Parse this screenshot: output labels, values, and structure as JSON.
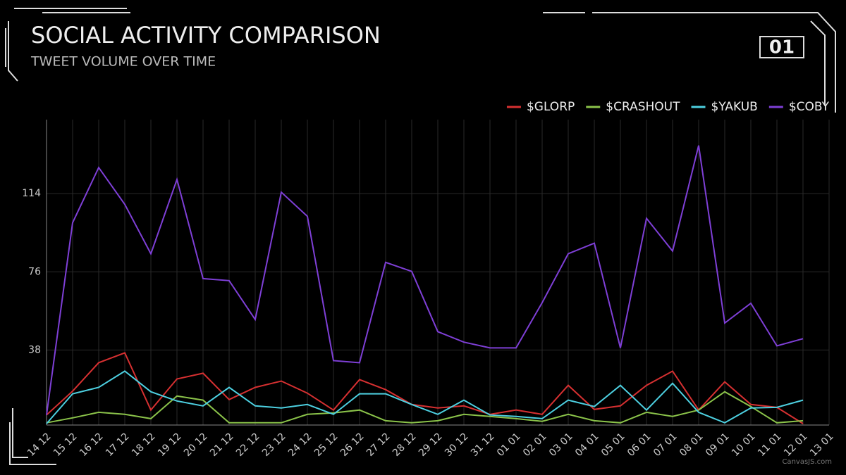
{
  "badge": "01",
  "watermark": "CanvasJS.com",
  "chart_data": {
    "type": "line",
    "title": "SOCIAL ACTIVITY COMPARISON",
    "subtitle": "TWEET VOLUME OVER TIME",
    "categories": [
      "14 12",
      "15 12",
      "16 12",
      "17 12",
      "18 12",
      "19 12",
      "20 12",
      "21 12",
      "22 12",
      "23 12",
      "24 12",
      "25 12",
      "26 12",
      "27 12",
      "28 12",
      "29 12",
      "30 12",
      "31 12",
      "01 01",
      "02 01",
      "03 01",
      "04 01",
      "05 01",
      "06 01",
      "07 01",
      "08 01",
      "09 01",
      "10 01",
      "11 01",
      "12 01",
      "13 01"
    ],
    "series": [
      {
        "name": "$GLORP",
        "color": "#d63031",
        "values": [
          6.4,
          18,
          31.8,
          36.6,
          8.8,
          23.9,
          26.7,
          13.9,
          19.8,
          22.9,
          17,
          8.8,
          23.6,
          18.7,
          11.5,
          9.8,
          10.8,
          6.7,
          8.8,
          6.7,
          20.8,
          9.1,
          10.8,
          20.8,
          27.7,
          8.8,
          22.5,
          11.5,
          10.1,
          2.2,
          null
        ]
      },
      {
        "name": "$CRASHOUT",
        "color": "#8bc34a",
        "values": [
          2.6,
          5,
          7.7,
          6.7,
          4.6,
          15.6,
          13.6,
          2.6,
          2.6,
          2.6,
          6.7,
          7.4,
          8.8,
          3.6,
          2.6,
          3.6,
          6.7,
          5.7,
          4.6,
          3.3,
          6.7,
          3.6,
          2.6,
          7.7,
          5.7,
          8.8,
          17.7,
          10.5,
          2.6,
          3.6,
          null
        ]
      },
      {
        "name": "$YAKUB",
        "color": "#4dd0e1",
        "values": [
          2.2,
          16.7,
          19.8,
          27.7,
          17.7,
          13.2,
          10.8,
          19.8,
          10.8,
          9.8,
          11.5,
          6.7,
          16.7,
          16.7,
          11.5,
          6.7,
          13.6,
          6.4,
          5.7,
          4.6,
          13.6,
          10.5,
          20.8,
          8.8,
          21.8,
          7.7,
          2.6,
          9.8,
          10.1,
          13.6,
          null
        ]
      },
      {
        "name": "$COBY",
        "color": "#7e3fd6",
        "values": [
          6.4,
          99.9,
          126.7,
          108.8,
          84.8,
          120.9,
          72.7,
          71.7,
          52.8,
          114.7,
          103,
          32.8,
          31.8,
          80.6,
          76.2,
          46.9,
          41.8,
          39,
          39,
          61,
          84.8,
          89.9,
          39,
          102,
          86.1,
          137.4,
          51.1,
          60.7,
          40,
          43.5,
          null
        ]
      }
    ],
    "ylim": [
      1.5,
      150
    ],
    "yticks": [
      38,
      76,
      114
    ],
    "grid": true,
    "xgrid": true,
    "legend": "top-right"
  }
}
